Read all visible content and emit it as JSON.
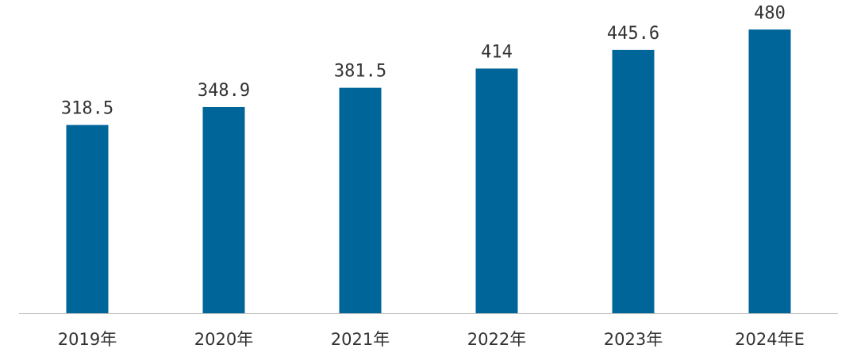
{
  "chart_data": {
    "type": "bar",
    "categories": [
      "2019年",
      "2020年",
      "2021年",
      "2022年",
      "2023年",
      "2024年E"
    ],
    "values": [
      318.5,
      348.9,
      381.5,
      414,
      445.6,
      480
    ],
    "value_labels": [
      "318.5",
      "348.9",
      "381.5",
      "414",
      "445.6",
      "480"
    ],
    "title": "",
    "xlabel": "",
    "ylabel": "",
    "ylim": [
      0,
      530
    ],
    "grid": false,
    "legend": "none",
    "bar_color": "#006699",
    "axis_color": "#bfbfbf",
    "text_color": "#333333"
  }
}
